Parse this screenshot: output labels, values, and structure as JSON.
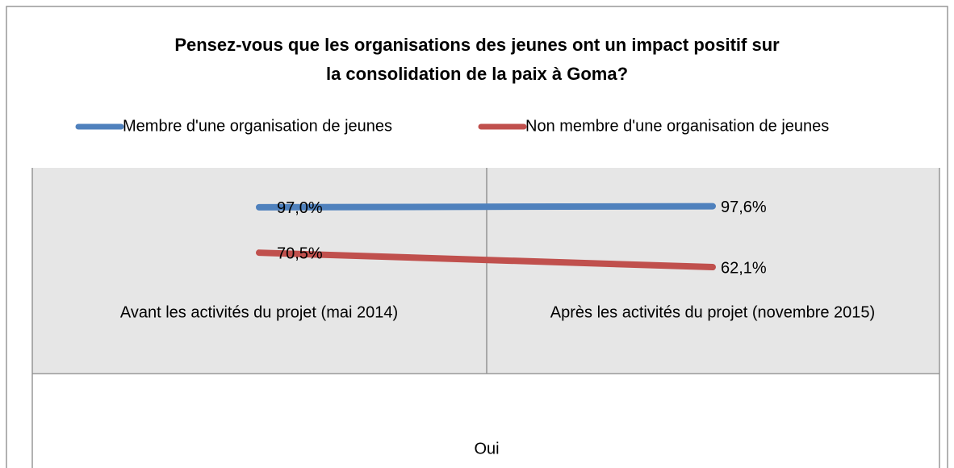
{
  "chart_data": {
    "type": "line",
    "title": [
      "Pensez-vous que les organisations des jeunes ont un impact positif sur",
      "la consolidation de la paix à Goma?"
    ],
    "categories": [
      "Avant les activités du projet (mai 2014)",
      "Après les activités du projet (novembre 2015)"
    ],
    "group_label": "Oui",
    "ylim": [
      0,
      120
    ],
    "legend": "top",
    "series": [
      {
        "name": "Membre d'une organisation de jeunes",
        "color": "#4f81bd",
        "values": [
          97.0,
          97.6
        ],
        "value_labels": [
          "97,0%",
          "97,6%"
        ]
      },
      {
        "name": "Non membre d'une organisation de jeunes",
        "color": "#c0504d",
        "values": [
          70.5,
          62.1
        ],
        "value_labels": [
          "70,5%",
          "62,1%"
        ]
      }
    ]
  }
}
